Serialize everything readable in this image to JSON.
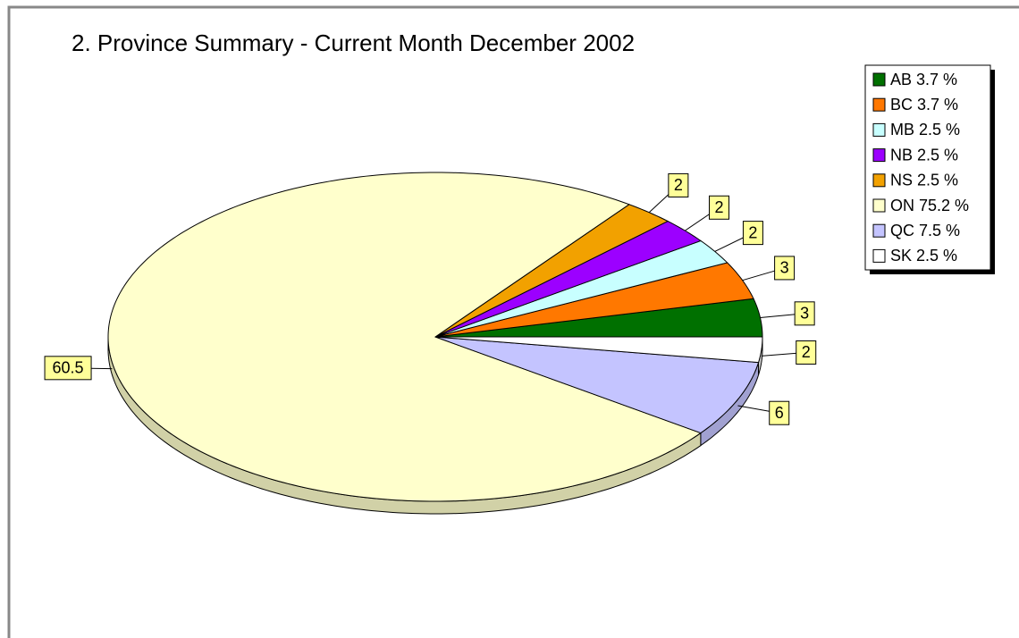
{
  "chart_data": {
    "type": "pie3d",
    "title": "2. Province Summary - Current Month December 2002",
    "categories": [
      "AB 3.7 %",
      "BC 3.7 %",
      "MB 2.5 %",
      "NB 2.5 %",
      "NS 2.5 %",
      "ON 75.2 %",
      "QC 7.5 %",
      "SK 2.5 %"
    ],
    "values": [
      3,
      3,
      2,
      2,
      2,
      60.5,
      6,
      2
    ],
    "colors": [
      "#007000",
      "#ff7800",
      "#c8ffff",
      "#9c00ff",
      "#f2a100",
      "#ffffcc",
      "#c4c4ff",
      "#ffffff"
    ],
    "legend": "top-right"
  }
}
